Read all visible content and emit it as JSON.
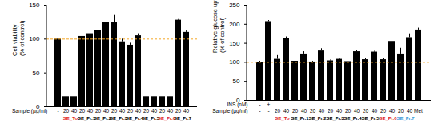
{
  "chart_data": [
    {
      "type": "bar",
      "y_label": "Cell viability\n(% of control)",
      "sample_label": "Sample (µg/ml)",
      "categories": [
        "-",
        "20",
        "40",
        "20",
        "40",
        "20",
        "40",
        "20",
        "40",
        "20",
        "40",
        "20",
        "40",
        "20",
        "40",
        "20",
        "40"
      ],
      "groups": [
        {
          "name": "SE_To",
          "color": "#e02020"
        },
        {
          "name": "SE_Fr.1",
          "color": "#000000"
        },
        {
          "name": "SE_Fr.2",
          "color": "#000000"
        },
        {
          "name": "SE_Fr.3",
          "color": "#000000"
        },
        {
          "name": "SE_Fr.4",
          "color": "#000000"
        },
        {
          "name": "SE_Fr.5",
          "color": "#000000"
        },
        {
          "name": "SE_Fr.6",
          "color": "#e02020"
        },
        {
          "name": "SE_Fr.7",
          "color": "#000000"
        }
      ],
      "values": [
        100,
        15,
        15,
        104,
        108,
        113,
        124,
        124,
        96,
        91,
        105,
        15,
        15,
        15,
        15,
        128,
        110
      ],
      "errors": [
        2,
        0,
        0,
        5,
        4,
        3,
        4,
        11,
        4,
        3,
        3,
        0,
        0,
        0,
        0,
        1,
        2
      ],
      "color": "#000000",
      "reference_line": {
        "value": 100,
        "color": "#f5a623",
        "line_style": "dashed"
      },
      "ylim": [
        0,
        150
      ],
      "yticks": [
        0,
        50,
        100,
        150
      ],
      "grid": false
    },
    {
      "type": "bar",
      "y_label": "Relative glucose uptake\n(% of control)",
      "ins_label": "INS (nM)",
      "sample_label": "Sample (µg/ml)",
      "categories": [
        "-",
        "+",
        null,
        null,
        null,
        null,
        null,
        null,
        null,
        null,
        null,
        null,
        null,
        null,
        null,
        null,
        null,
        null,
        null
      ],
      "sample_row": [
        "-",
        "-",
        "20",
        "40",
        "20",
        "40",
        "20",
        "40",
        "20",
        "40",
        "20",
        "40",
        "20",
        "40",
        "20",
        "40",
        "20",
        "40",
        "Met"
      ],
      "groups": [
        {
          "name": "SE_To",
          "color": "#e02020"
        },
        {
          "name": "SE_Fr.1",
          "color": "#000000"
        },
        {
          "name": "SE_Fr.2",
          "color": "#000000"
        },
        {
          "name": "SE_Fr.3",
          "color": "#000000"
        },
        {
          "name": "SE_Fr.4",
          "color": "#000000"
        },
        {
          "name": "SE_Fr.5",
          "color": "#000000"
        },
        {
          "name": "SE_Fr.6",
          "color": "#e02020"
        },
        {
          "name": "SE_Fr.7",
          "color": "#3a9ad9"
        }
      ],
      "values": [
        100,
        207,
        108,
        162,
        103,
        122,
        101,
        130,
        104,
        108,
        102,
        128,
        107,
        127,
        107,
        155,
        122,
        165,
        185
      ],
      "errors": [
        3,
        3,
        10,
        5,
        2,
        6,
        2,
        6,
        2,
        3,
        2,
        4,
        4,
        2,
        4,
        12,
        15,
        10,
        5
      ],
      "color": "#000000",
      "reference_line": {
        "value": 100,
        "color": "#f5a623",
        "line_style": "dashed"
      },
      "ylim": [
        0,
        250
      ],
      "yticks": [
        0,
        50,
        100,
        150,
        200,
        250
      ],
      "grid": false
    }
  ]
}
